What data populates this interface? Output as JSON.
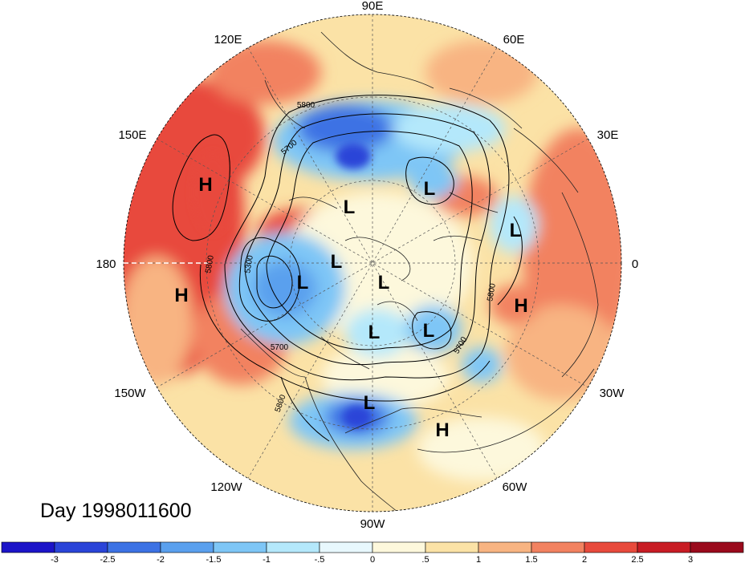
{
  "map": {
    "day_label": "Day 1998011600",
    "projection": "north-polar-stereographic",
    "longitude_labels": [
      {
        "text": "90E",
        "deg": 90
      },
      {
        "text": "60E",
        "deg": 60
      },
      {
        "text": "30E",
        "deg": 30
      },
      {
        "text": "0",
        "deg": 0
      },
      {
        "text": "30W",
        "deg": -30
      },
      {
        "text": "60W",
        "deg": -60
      },
      {
        "text": "90W",
        "deg": -90
      },
      {
        "text": "120W",
        "deg": -120
      },
      {
        "text": "150W",
        "deg": -150
      },
      {
        "text": "180",
        "deg": 180
      },
      {
        "text": "150E",
        "deg": 150
      },
      {
        "text": "120E",
        "deg": 120
      }
    ],
    "contour_labels": [
      "5800",
      "5700",
      "5300",
      "5800",
      "5700",
      "5800",
      "5700",
      "5800"
    ],
    "pressure_centers": [
      {
        "type": "H",
        "label": "H"
      },
      {
        "type": "H",
        "label": "H"
      },
      {
        "type": "H",
        "label": "H"
      },
      {
        "type": "H",
        "label": "H"
      },
      {
        "type": "L",
        "label": "L"
      },
      {
        "type": "L",
        "label": "L"
      },
      {
        "type": "L",
        "label": "L"
      },
      {
        "type": "L",
        "label": "L"
      },
      {
        "type": "L",
        "label": "L"
      },
      {
        "type": "L",
        "label": "L"
      },
      {
        "type": "L",
        "label": "L"
      },
      {
        "type": "L",
        "label": "L"
      },
      {
        "type": "L",
        "label": "L"
      }
    ]
  },
  "colorbar": {
    "tick_labels": [
      "-3",
      "-2.5",
      "-2",
      "-1.5",
      "-1",
      "-.5",
      "0",
      ".5",
      "1",
      "1.5",
      "2",
      "2.5",
      "3"
    ],
    "colors": [
      "#1c14c8",
      "#2a44d8",
      "#3c72e4",
      "#5aa0ee",
      "#7ec6f6",
      "#b4e8fb",
      "#e8f8fd",
      "#fdf8dc",
      "#fbe2a6",
      "#f8b482",
      "#f28260",
      "#e84a3c",
      "#c81c24",
      "#9a0a1c"
    ]
  }
}
